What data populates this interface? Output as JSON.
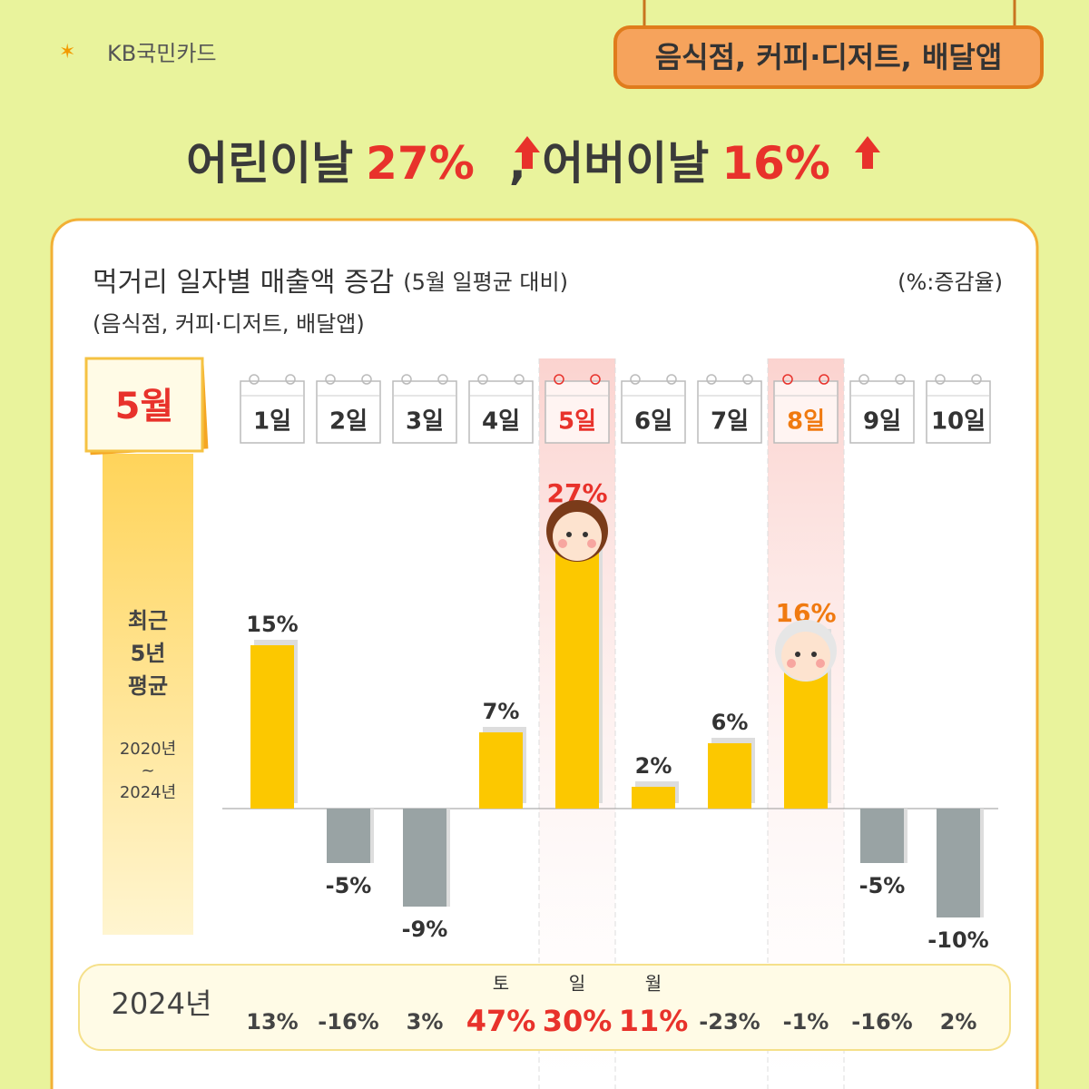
{
  "header": {
    "brand": "KB국민카드",
    "badge": "음식점, 커피·디저트, 배달앱",
    "headline": [
      "어린이날",
      "27%",
      ", 어버이날",
      "16%"
    ]
  },
  "chart_data": {
    "type": "bar",
    "title": "먹거리 일자별 매출액 증감",
    "title_note": "(5월 일평균 대비)",
    "unit_note": "(%:증감율)",
    "subtitle": "(음식점, 커피·디저트, 배달앱)",
    "month": "5월",
    "side_label": [
      "최근",
      "5년",
      "평균"
    ],
    "side_period": [
      "2020년",
      "~",
      "2024년"
    ],
    "categories": [
      "1일",
      "2일",
      "3일",
      "4일",
      "5일",
      "6일",
      "7일",
      "8일",
      "9일",
      "10일"
    ],
    "values": [
      15,
      -5,
      -9,
      7,
      27,
      2,
      6,
      16,
      -5,
      -10
    ],
    "value_labels": [
      "15%",
      "-5%",
      "-9%",
      "7%",
      "27%",
      "2%",
      "6%",
      "16%",
      "-5%",
      "-10%"
    ],
    "positive_color": "#fcc800",
    "negative_color": "#99a3a4",
    "label_colors": [
      "#333",
      "#333",
      "#333",
      "#333",
      "#e8322b",
      "#333",
      "#333",
      "#f07a10",
      "#333",
      "#333"
    ],
    "highlight": [
      false,
      false,
      false,
      false,
      true,
      false,
      false,
      true,
      false,
      false
    ],
    "row": {
      "label": "2024년",
      "weekdays": [
        null,
        null,
        null,
        "토",
        "일",
        "월",
        null,
        null,
        null,
        null
      ],
      "values": [
        13,
        -16,
        3,
        47,
        30,
        11,
        -23,
        -1,
        -16,
        2
      ],
      "value_labels": [
        "13%",
        "-16%",
        "3%",
        "47%",
        "30%",
        "11%",
        "-23%",
        "-1%",
        "-16%",
        "2%"
      ],
      "colors": [
        "#444",
        "#444",
        "#444",
        "#e8322b",
        "#e8322b",
        "#e8322b",
        "#444",
        "#444",
        "#444",
        "#444"
      ]
    }
  }
}
